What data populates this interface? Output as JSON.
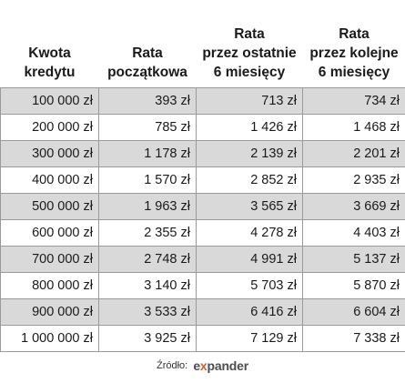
{
  "table": {
    "headers": [
      "Kwota\nkredytu",
      "Rata\npoczątkowa",
      "Rata\nprzez ostatnie\n6 miesięcy",
      "Rata\nprzez kolejne\n6 miesięcy"
    ],
    "rows": [
      [
        "100 000 zł",
        "393 zł",
        "713 zł",
        "734 zł"
      ],
      [
        "200 000 zł",
        "785 zł",
        "1 426 zł",
        "1 468 zł"
      ],
      [
        "300 000 zł",
        "1 178 zł",
        "2 139 zł",
        "2 201 zł"
      ],
      [
        "400 000 zł",
        "1 570 zł",
        "2 852 zł",
        "2 935 zł"
      ],
      [
        "500 000 zł",
        "1 963 zł",
        "3 565 zł",
        "3 669 zł"
      ],
      [
        "600 000 zł",
        "2 355 zł",
        "4 278 zł",
        "4 403 zł"
      ],
      [
        "700 000 zł",
        "2 748 zł",
        "4 991 zł",
        "5 137 zł"
      ],
      [
        "800 000 zł",
        "3 140 zł",
        "5 703 zł",
        "5 870 zł"
      ],
      [
        "900 000 zł",
        "3 533 zł",
        "6 416 zł",
        "6 604 zł"
      ],
      [
        "1 000 000 zł",
        "3 925 zł",
        "7 129 zł",
        "7 338 zł"
      ]
    ],
    "shade_color": "#d9d9d9",
    "border_color": "#9a9a9a"
  },
  "source": {
    "label": "Źródło:",
    "brand_prefix": "e",
    "brand_accent": "x",
    "brand_suffix": "pander",
    "brand_color": "#4d4d4d",
    "accent_color": "#e2582a"
  }
}
